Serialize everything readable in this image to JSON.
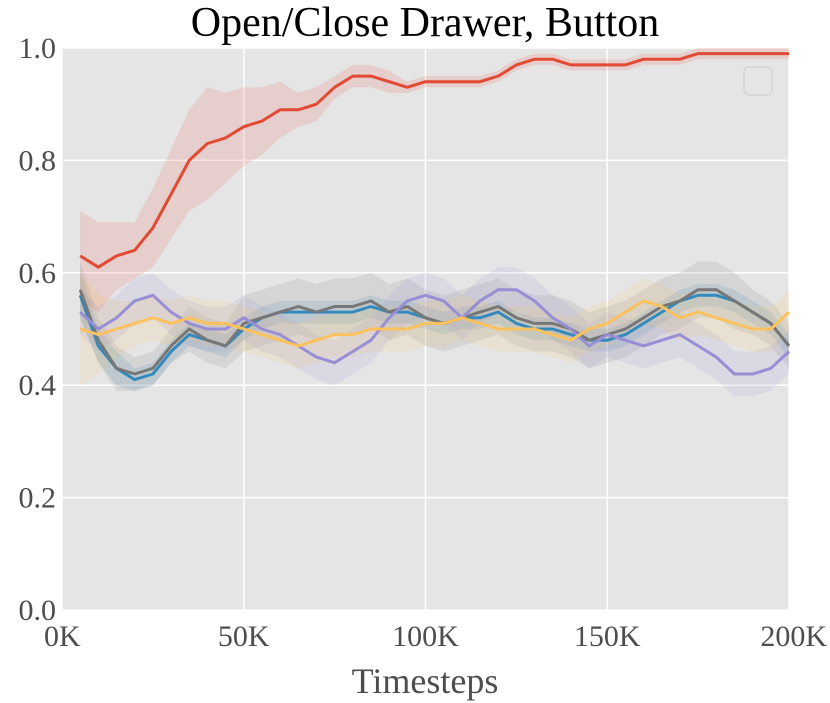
{
  "chart_data": {
    "type": "line",
    "title": "Open/Close Drawer, Button",
    "xlabel": "Timesteps",
    "ylabel": "",
    "xlim": [
      0,
      200000
    ],
    "ylim": [
      0,
      1.0
    ],
    "x_ticks": [
      0,
      50000,
      100000,
      150000,
      200000
    ],
    "x_tick_labels": [
      "0K",
      "50K",
      "100K",
      "150K",
      "200K"
    ],
    "y_ticks": [
      0,
      0.2,
      0.4,
      0.6,
      0.8,
      1.0
    ],
    "y_tick_labels": [
      "0.0",
      "0.2",
      "0.4",
      "0.6",
      "0.8",
      "1.0"
    ],
    "grid": true,
    "legend": "top-right (empty)",
    "background_color": "#e5e5e5",
    "x": [
      5000,
      10000,
      15000,
      20000,
      25000,
      30000,
      35000,
      40000,
      45000,
      50000,
      55000,
      60000,
      65000,
      70000,
      75000,
      80000,
      85000,
      90000,
      95000,
      100000,
      105000,
      110000,
      115000,
      120000,
      125000,
      130000,
      135000,
      140000,
      145000,
      150000,
      155000,
      160000,
      165000,
      170000,
      175000,
      180000,
      185000,
      190000,
      195000,
      200000
    ],
    "series": [
      {
        "color": "#e24a33",
        "values": [
          0.63,
          0.61,
          0.63,
          0.64,
          0.68,
          0.74,
          0.8,
          0.83,
          0.84,
          0.86,
          0.87,
          0.89,
          0.89,
          0.9,
          0.93,
          0.95,
          0.95,
          0.94,
          0.93,
          0.94,
          0.94,
          0.94,
          0.94,
          0.95,
          0.97,
          0.98,
          0.98,
          0.97,
          0.97,
          0.97,
          0.97,
          0.98,
          0.98,
          0.98,
          0.99,
          0.99,
          0.99,
          0.99,
          0.99,
          0.99
        ],
        "band": [
          0.08,
          0.08,
          0.06,
          0.05,
          0.07,
          0.08,
          0.09,
          0.1,
          0.08,
          0.07,
          0.06,
          0.05,
          0.03,
          0.03,
          0.02,
          0.02,
          0.02,
          0.02,
          0.01,
          0.01,
          0.01,
          0.01,
          0.01,
          0.01,
          0.01,
          0.01,
          0.01,
          0.01,
          0.01,
          0.01,
          0.01,
          0.01,
          0.01,
          0.01,
          0.01,
          0.01,
          0.01,
          0.01,
          0.01,
          0.01
        ]
      },
      {
        "color": "#348abd",
        "values": [
          0.56,
          0.47,
          0.43,
          0.41,
          0.42,
          0.46,
          0.49,
          0.48,
          0.47,
          0.5,
          0.52,
          0.53,
          0.53,
          0.53,
          0.53,
          0.53,
          0.54,
          0.53,
          0.53,
          0.52,
          0.51,
          0.52,
          0.52,
          0.53,
          0.51,
          0.5,
          0.5,
          0.49,
          0.48,
          0.48,
          0.49,
          0.51,
          0.53,
          0.55,
          0.56,
          0.56,
          0.55,
          0.53,
          0.51,
          0.47
        ],
        "band": [
          0.04,
          0.03,
          0.03,
          0.02,
          0.02,
          0.02,
          0.02,
          0.02,
          0.02,
          0.02,
          0.02,
          0.02,
          0.02,
          0.02,
          0.02,
          0.02,
          0.02,
          0.02,
          0.02,
          0.02,
          0.02,
          0.02,
          0.02,
          0.02,
          0.02,
          0.02,
          0.02,
          0.02,
          0.02,
          0.02,
          0.02,
          0.02,
          0.02,
          0.02,
          0.02,
          0.02,
          0.02,
          0.02,
          0.02,
          0.02
        ]
      },
      {
        "color": "#777777",
        "values": [
          0.57,
          0.48,
          0.43,
          0.42,
          0.43,
          0.47,
          0.5,
          0.48,
          0.47,
          0.51,
          0.52,
          0.53,
          0.54,
          0.53,
          0.54,
          0.54,
          0.55,
          0.53,
          0.54,
          0.52,
          0.51,
          0.52,
          0.53,
          0.54,
          0.52,
          0.51,
          0.51,
          0.5,
          0.48,
          0.49,
          0.5,
          0.52,
          0.54,
          0.55,
          0.57,
          0.57,
          0.55,
          0.53,
          0.51,
          0.47
        ],
        "band": [
          0.05,
          0.04,
          0.04,
          0.03,
          0.03,
          0.03,
          0.04,
          0.04,
          0.04,
          0.05,
          0.05,
          0.05,
          0.05,
          0.05,
          0.05,
          0.05,
          0.05,
          0.05,
          0.05,
          0.05,
          0.05,
          0.05,
          0.05,
          0.05,
          0.05,
          0.05,
          0.05,
          0.05,
          0.05,
          0.05,
          0.05,
          0.05,
          0.05,
          0.05,
          0.05,
          0.05,
          0.05,
          0.04,
          0.04,
          0.04
        ]
      },
      {
        "color": "#988ed5",
        "values": [
          0.53,
          0.5,
          0.52,
          0.55,
          0.56,
          0.53,
          0.51,
          0.5,
          0.5,
          0.52,
          0.5,
          0.49,
          0.47,
          0.45,
          0.44,
          0.46,
          0.48,
          0.52,
          0.55,
          0.56,
          0.55,
          0.52,
          0.55,
          0.57,
          0.57,
          0.55,
          0.52,
          0.5,
          0.47,
          0.49,
          0.48,
          0.47,
          0.48,
          0.49,
          0.47,
          0.45,
          0.42,
          0.42,
          0.43,
          0.46
        ],
        "band": [
          0.04,
          0.04,
          0.04,
          0.04,
          0.04,
          0.04,
          0.04,
          0.04,
          0.04,
          0.04,
          0.04,
          0.04,
          0.04,
          0.04,
          0.04,
          0.04,
          0.04,
          0.04,
          0.04,
          0.04,
          0.04,
          0.04,
          0.04,
          0.04,
          0.04,
          0.04,
          0.04,
          0.04,
          0.04,
          0.04,
          0.04,
          0.04,
          0.04,
          0.04,
          0.04,
          0.04,
          0.04,
          0.04,
          0.04,
          0.04
        ]
      },
      {
        "color": "#fbc15e",
        "values": [
          0.5,
          0.49,
          0.5,
          0.51,
          0.52,
          0.51,
          0.52,
          0.51,
          0.51,
          0.5,
          0.49,
          0.48,
          0.47,
          0.48,
          0.49,
          0.49,
          0.5,
          0.5,
          0.5,
          0.51,
          0.51,
          0.52,
          0.51,
          0.5,
          0.5,
          0.5,
          0.49,
          0.48,
          0.5,
          0.51,
          0.53,
          0.55,
          0.54,
          0.52,
          0.53,
          0.52,
          0.51,
          0.5,
          0.5,
          0.53
        ],
        "band": [
          0.1,
          0.07,
          0.05,
          0.04,
          0.04,
          0.04,
          0.04,
          0.04,
          0.04,
          0.04,
          0.04,
          0.04,
          0.04,
          0.04,
          0.04,
          0.04,
          0.04,
          0.04,
          0.04,
          0.04,
          0.04,
          0.04,
          0.04,
          0.04,
          0.04,
          0.04,
          0.04,
          0.04,
          0.04,
          0.04,
          0.04,
          0.04,
          0.04,
          0.04,
          0.04,
          0.04,
          0.04,
          0.04,
          0.04,
          0.04
        ]
      }
    ]
  }
}
